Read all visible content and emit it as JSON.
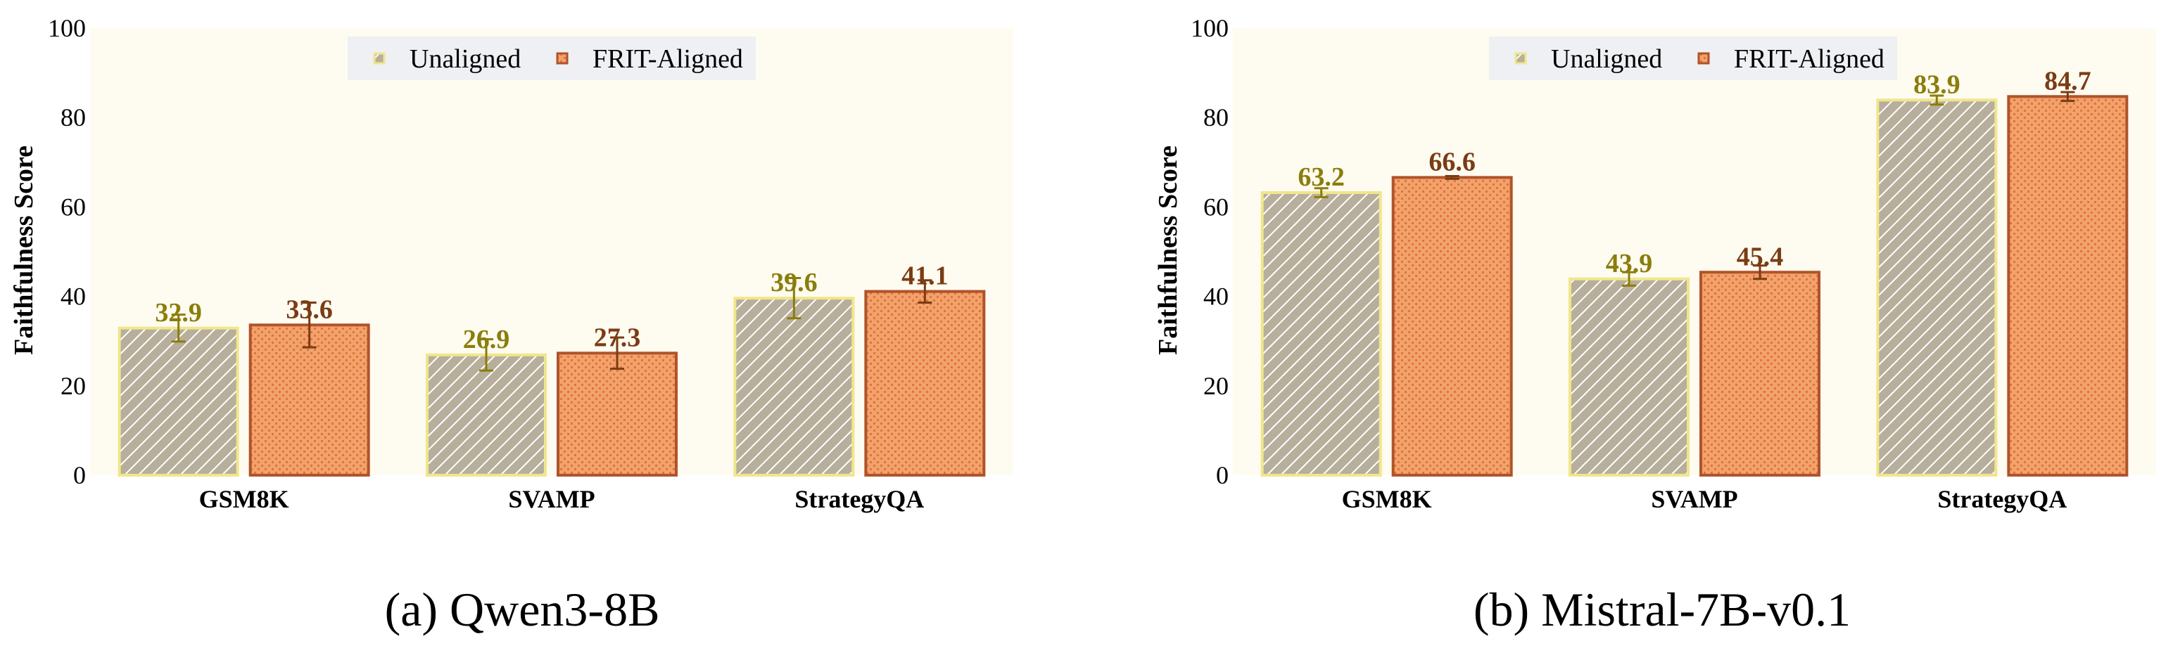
{
  "colors": {
    "plot_bg": "#fefbf0",
    "legend_bg": "#eef0f3",
    "unaligned_fill": "#b7ae9b",
    "unaligned_edge": "#f0e68c",
    "unaligned_label": "#8b7d0b",
    "aligned_fill": "#f2a26b",
    "aligned_edge": "#b0532a",
    "aligned_label": "#7a3c14"
  },
  "chart_data": [
    {
      "type": "bar",
      "caption": "(a) Qwen3-8B",
      "ylabel": "Faithfulness Score",
      "ylim": [
        0,
        100
      ],
      "yticks": [
        "0",
        "20",
        "40",
        "60",
        "80",
        "100"
      ],
      "categories": [
        "GSM8K",
        "SVAMP",
        "StrategyQA"
      ],
      "legend_position": "top-center",
      "series": [
        {
          "name": "Unaligned",
          "values": [
            32.9,
            26.9,
            39.6
          ],
          "errors": [
            3.0,
            3.5,
            4.5
          ],
          "labels": [
            "32.9",
            "26.9",
            "39.6"
          ]
        },
        {
          "name": "FRIT-Aligned",
          "values": [
            33.6,
            27.3,
            41.1
          ],
          "errors": [
            5.0,
            3.5,
            2.5
          ],
          "labels": [
            "33.6",
            "27.3",
            "41.1"
          ]
        }
      ]
    },
    {
      "type": "bar",
      "caption": "(b) Mistral-7B-v0.1",
      "ylabel": "Faithfulness Score",
      "ylim": [
        0,
        100
      ],
      "yticks": [
        "0",
        "20",
        "40",
        "60",
        "80",
        "100"
      ],
      "categories": [
        "GSM8K",
        "SVAMP",
        "StrategyQA"
      ],
      "legend_position": "top-center",
      "series": [
        {
          "name": "Unaligned",
          "values": [
            63.2,
            43.9,
            83.9
          ],
          "errors": [
            1.0,
            1.5,
            1.0
          ],
          "labels": [
            "63.2",
            "43.9",
            "83.9"
          ]
        },
        {
          "name": "FRIT-Aligned",
          "values": [
            66.6,
            45.4,
            84.7
          ],
          "errors": [
            0.3,
            1.5,
            1.0
          ],
          "labels": [
            "66.6",
            "45.4",
            "84.7"
          ]
        }
      ]
    }
  ]
}
